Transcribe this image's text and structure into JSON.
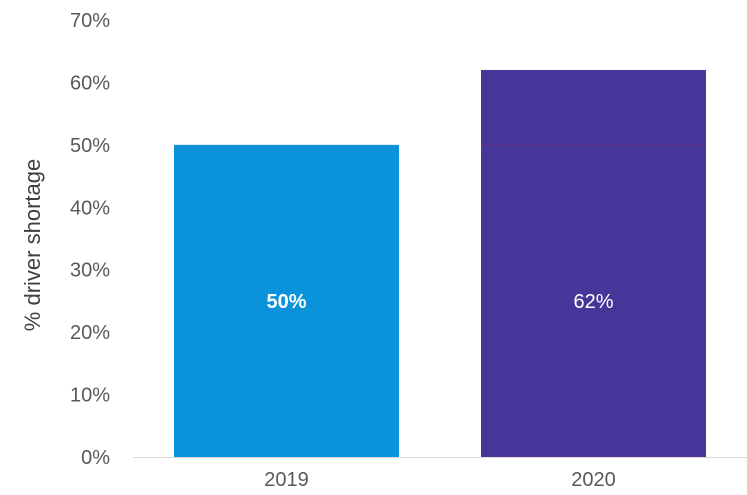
{
  "chart_data": {
    "type": "bar",
    "categories": [
      "2019",
      "2020"
    ],
    "values": [
      50,
      62
    ],
    "data_labels": [
      "50%",
      "62%"
    ],
    "ylabel": "% driver shortage",
    "ylim": [
      0,
      70
    ],
    "yticks": [
      "0%",
      "10%",
      "20%",
      "30%",
      "40%",
      "50%",
      "60%",
      "70%"
    ],
    "grid": false,
    "legend": "none",
    "colors": {
      "bar_2019": "#0A93DB",
      "bar_2020": "#473699",
      "reference_line": "#7A2A7A",
      "axis_line": "#D9D9D9"
    },
    "reference_level": 50
  }
}
